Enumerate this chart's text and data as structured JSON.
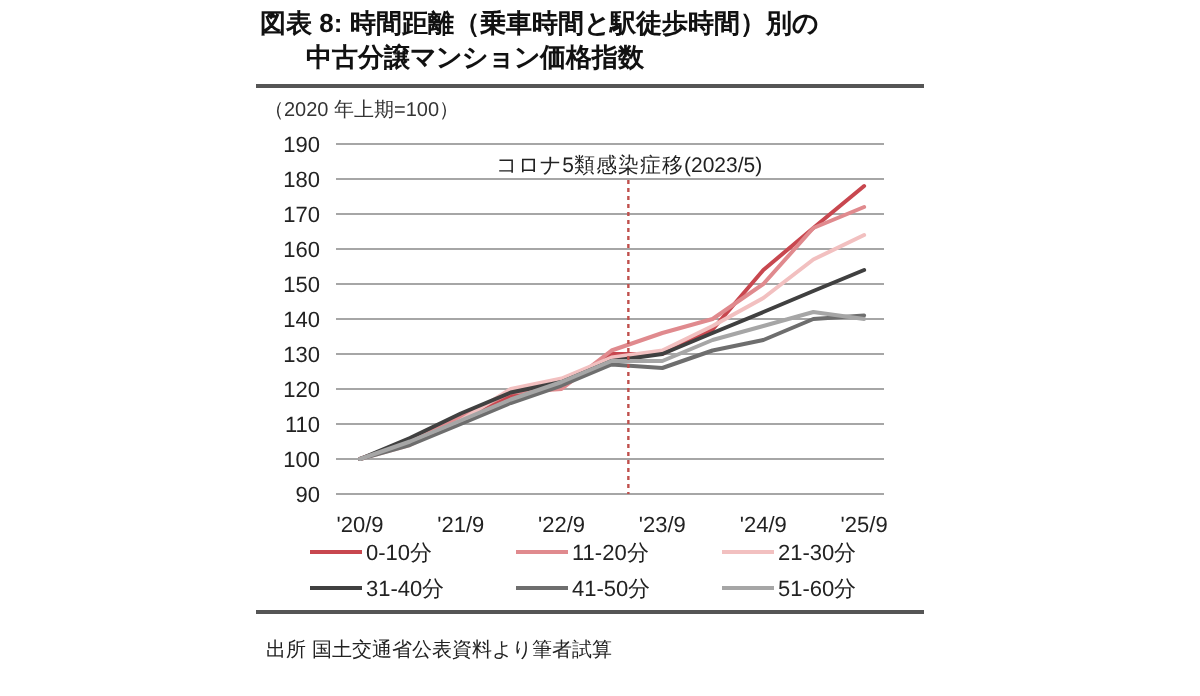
{
  "chart_data": {
    "type": "line",
    "title": "図表 8: 時間距離（乗車時間と駅徒歩時間）別の",
    "subtitle": "中古分譲マンション価格指数",
    "ylabel": "（2020 年上期=100）",
    "x": [
      "2020-09",
      "2021-03",
      "2021-09",
      "2022-03",
      "2022-09",
      "2023-03",
      "2023-09",
      "2024-03",
      "2024-09",
      "2025-03",
      "2025-09"
    ],
    "series": [
      {
        "name": "0-10分",
        "color": "#c8474f",
        "values": [
          100,
          105,
          112,
          118,
          121,
          130,
          130,
          137,
          154,
          166,
          178
        ]
      },
      {
        "name": "11-20分",
        "color": "#e08a8e",
        "values": [
          100,
          105,
          112,
          119,
          120,
          131,
          136,
          140,
          150,
          166,
          172
        ]
      },
      {
        "name": "21-30分",
        "color": "#f2c0c0",
        "values": [
          100,
          104,
          111,
          120,
          123,
          129,
          131,
          138,
          146,
          157,
          164
        ]
      },
      {
        "name": "31-40分",
        "color": "#404040",
        "values": [
          100,
          106,
          113,
          119,
          122,
          128,
          130,
          136,
          142,
          148,
          154
        ]
      },
      {
        "name": "41-50分",
        "color": "#6e6e6e",
        "values": [
          100,
          104,
          110,
          116,
          121,
          127,
          126,
          131,
          134,
          140,
          141
        ]
      },
      {
        "name": "51-60分",
        "color": "#a6a6a6",
        "values": [
          100,
          105,
          111,
          117,
          122,
          128,
          128,
          134,
          138,
          142,
          140
        ]
      }
    ],
    "xlim": [
      "2020-06-06",
      "2025-11-12"
    ],
    "xticks": [
      {
        "value": "2020-09",
        "label": "'20/9"
      },
      {
        "value": "2021-09",
        "label": "'21/9"
      },
      {
        "value": "2022-09",
        "label": "'22/9"
      },
      {
        "value": "2023-09",
        "label": "'23/9"
      },
      {
        "value": "2024-09",
        "label": "'24/9"
      },
      {
        "value": "2025-09",
        "label": "'25/9"
      }
    ],
    "ylim": [
      90,
      190
    ],
    "yticks": [
      90,
      100,
      110,
      120,
      130,
      140,
      150,
      160,
      170,
      180,
      190
    ],
    "grid": "y",
    "legend": "bottom",
    "ref_lines": [
      {
        "axis": "x",
        "value": "2023-05",
        "label": "コロナ5類感染症移(2023/5)",
        "color": "#c0504d",
        "line_style": "dotted"
      }
    ],
    "annotations": [
      "出所 国土交通省公表資料より筆者試算"
    ]
  }
}
